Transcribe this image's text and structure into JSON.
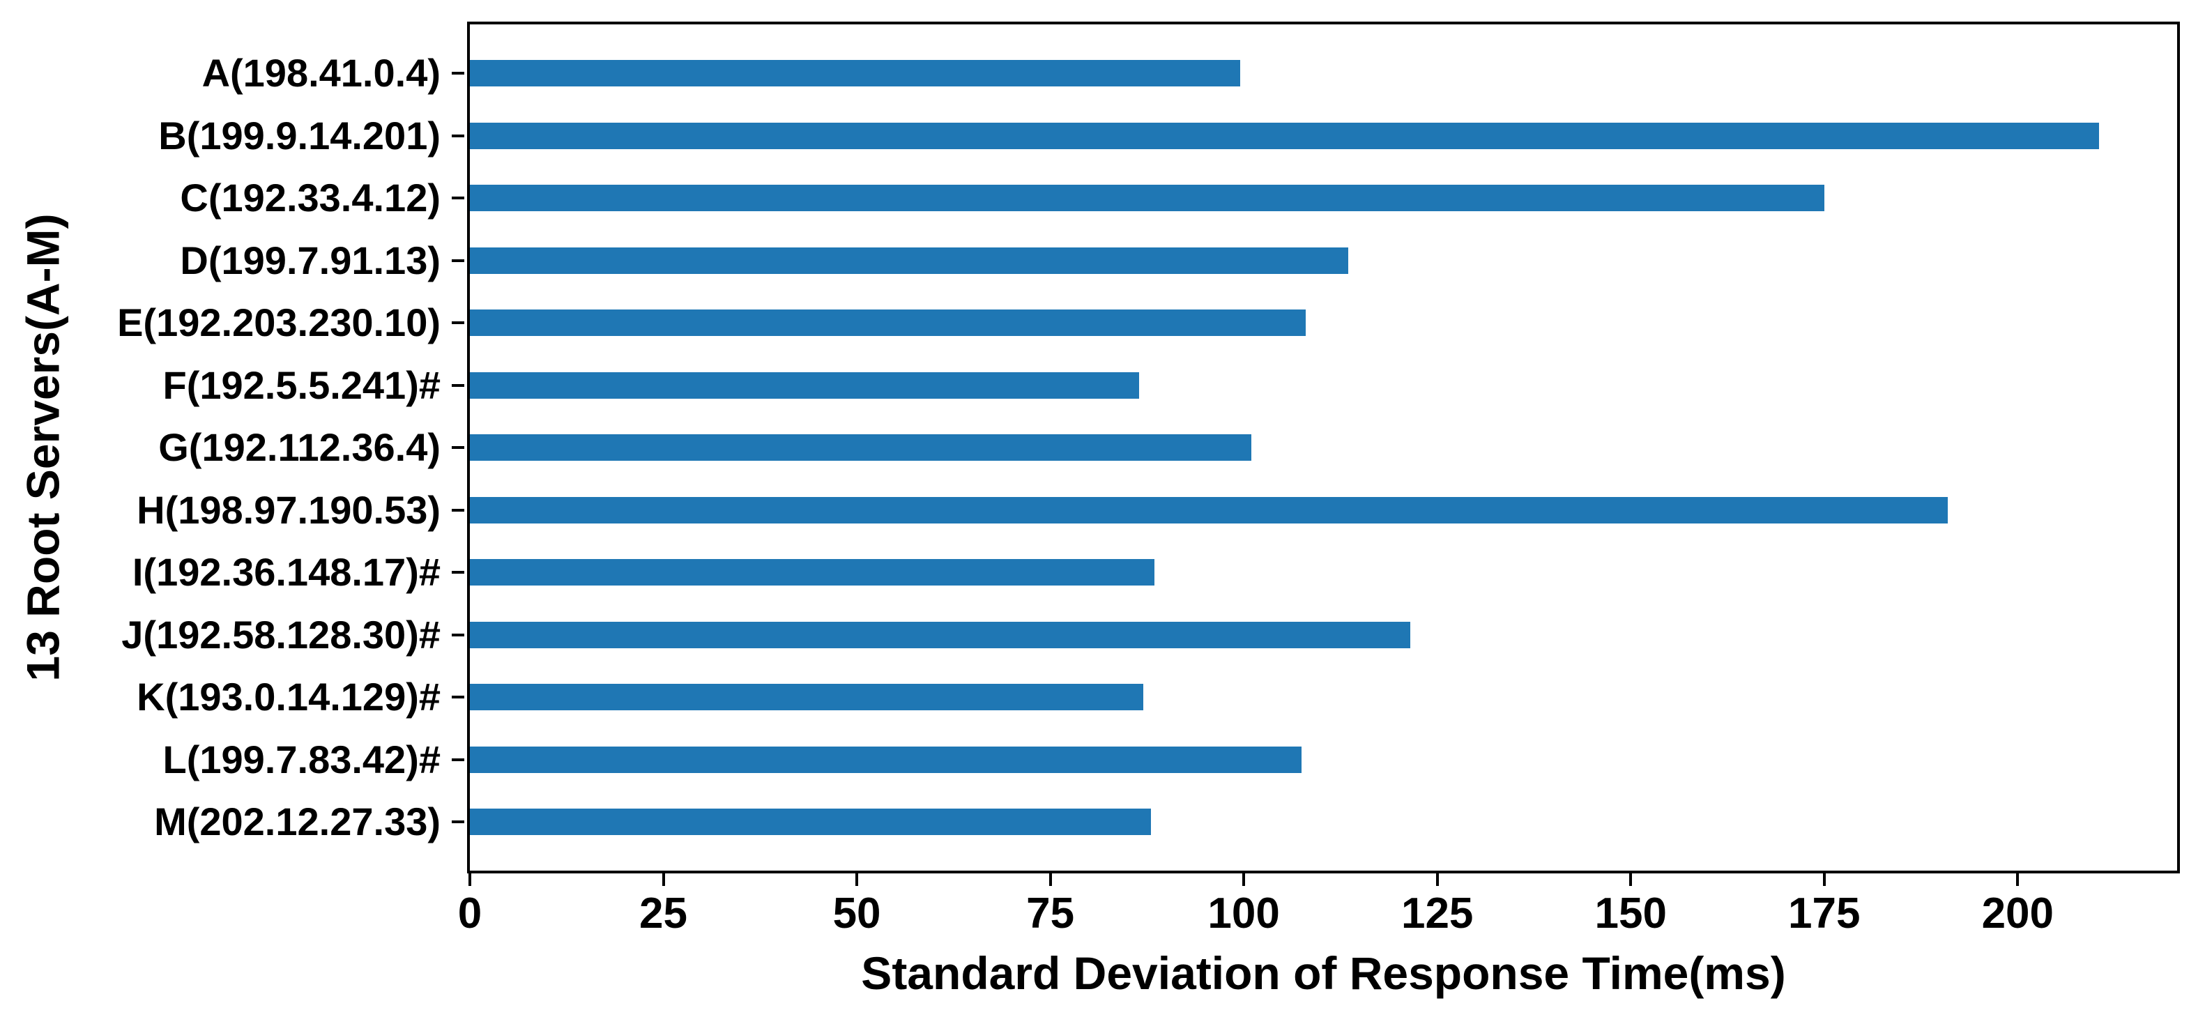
{
  "figure": {
    "background": "#ffffff",
    "bar_color": "#1f77b4",
    "axis_color": "#000000",
    "text_color": "#000000"
  },
  "chart_data": {
    "type": "bar",
    "orientation": "horizontal",
    "title": "",
    "xlabel": "Standard Deviation of Response Time(ms)",
    "ylabel": "13 Root Servers(A-M)",
    "categories": [
      "A(198.41.0.4)",
      "B(199.9.14.201)",
      "C(192.33.4.12)",
      "D(199.7.91.13)",
      "E(192.203.230.10)",
      "F(192.5.5.241)#",
      "G(192.112.36.4)",
      "H(198.97.190.53)",
      "I(192.36.148.17)#",
      "J(192.58.128.30)#",
      "K(193.0.14.129)#",
      "L(199.7.83.42)#",
      "M(202.12.27.33)"
    ],
    "values": [
      99.5,
      210.5,
      175,
      113.5,
      108,
      86.5,
      101,
      191,
      88.5,
      121.5,
      87,
      107.5,
      88
    ],
    "xlim": [
      0,
      220.6
    ],
    "xticks": [
      0,
      25,
      50,
      75,
      100,
      125,
      150,
      175,
      200
    ],
    "grid": false,
    "legend": null
  }
}
